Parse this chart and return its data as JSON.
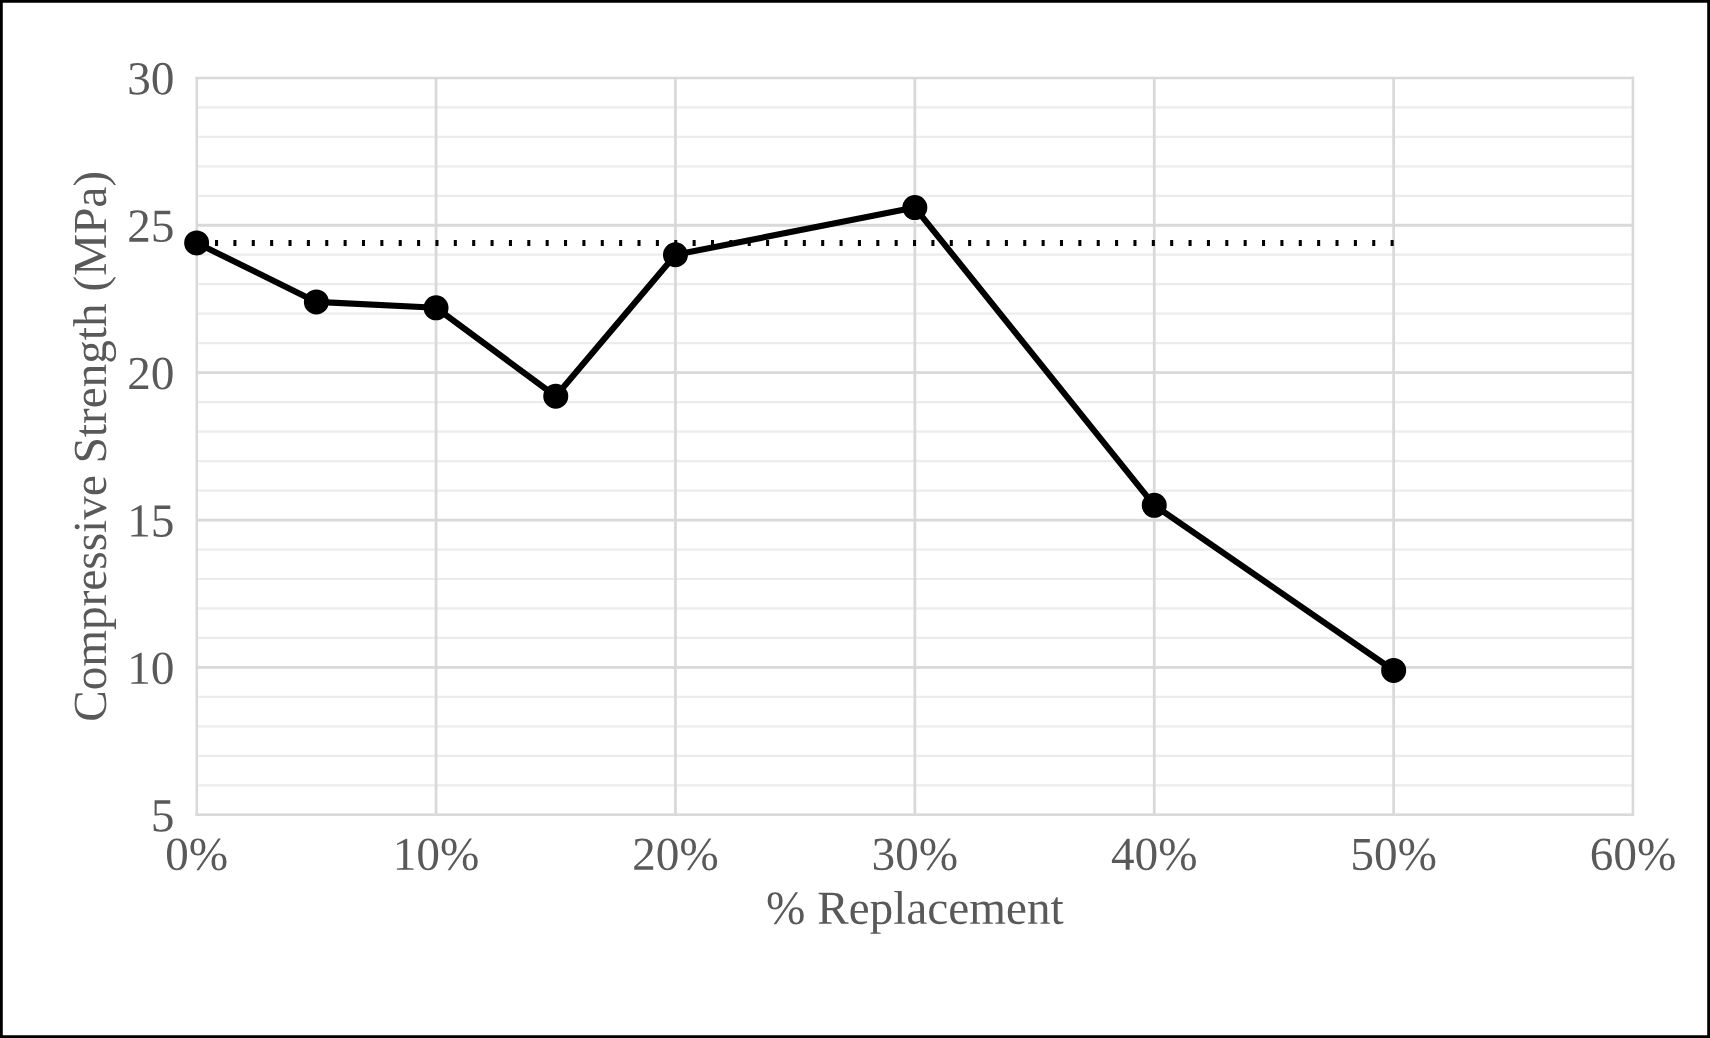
{
  "chart_data": {
    "type": "line",
    "xlabel": "% Replacement",
    "ylabel": "Compressive Strength (MPa)",
    "xlim": [
      0,
      60
    ],
    "xticks": [
      {
        "value": 0,
        "label": "0%"
      },
      {
        "value": 10,
        "label": "10%"
      },
      {
        "value": 20,
        "label": "20%"
      },
      {
        "value": 30,
        "label": "30%"
      },
      {
        "value": 40,
        "label": "40%"
      },
      {
        "value": 50,
        "label": "50%"
      },
      {
        "value": 60,
        "label": "60%"
      }
    ],
    "ylim": [
      5,
      30
    ],
    "yticks": [
      5,
      10,
      15,
      20,
      25,
      30
    ],
    "grid": true,
    "legend": false,
    "series": [
      {
        "color": "#000000",
        "x": [
          0,
          5,
          10,
          15,
          20,
          30,
          40,
          50
        ],
        "values": [
          24.4,
          22.4,
          22.2,
          19.2,
          24.0,
          25.6,
          15.5,
          9.9
        ],
        "marker": "circle",
        "line_style": "solid"
      },
      {
        "color": "#000000",
        "x": [
          0,
          50
        ],
        "values": [
          24.4,
          24.4
        ],
        "marker": "none",
        "line_style": "dotted"
      }
    ]
  }
}
